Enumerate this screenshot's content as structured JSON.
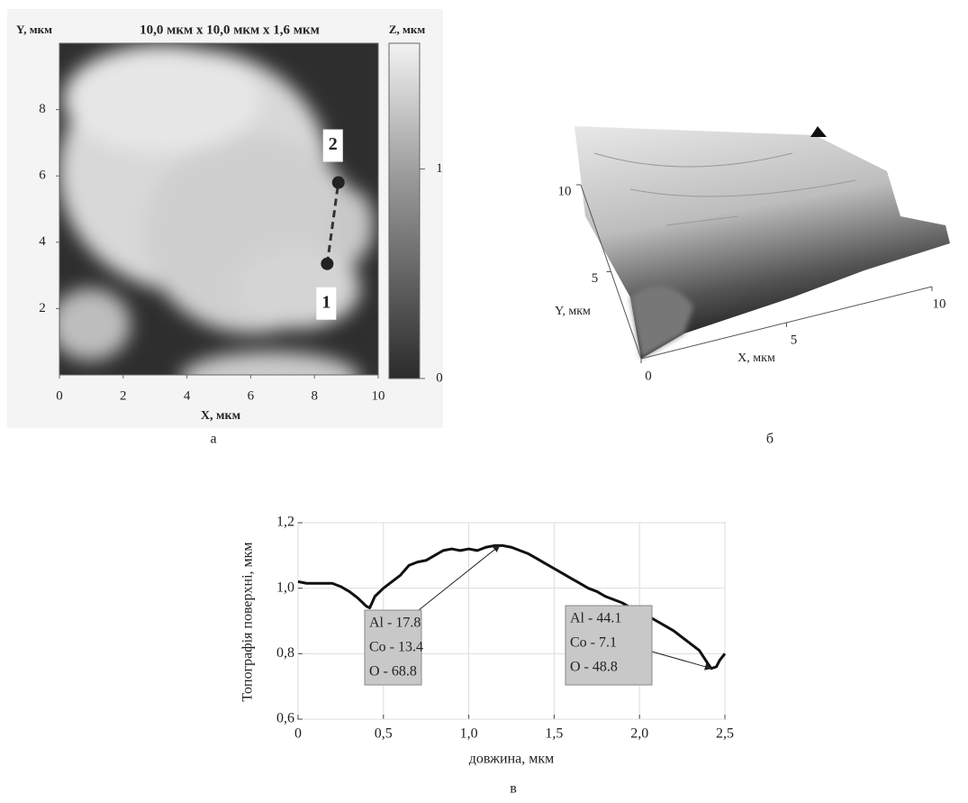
{
  "chart_data": [
    {
      "type": "heatmap",
      "panel_label": "а",
      "title": "10,0 мкм x 10,0 мкм x 1,6 мкм",
      "x_label": "X, мкм",
      "y_label": "Y, мкм",
      "colorbar_label": "Z, мкм",
      "xlim": [
        0,
        10
      ],
      "ylim": [
        0,
        10
      ],
      "xticks": [
        0,
        2,
        4,
        6,
        8,
        10
      ],
      "yticks": [
        2,
        4,
        6,
        8
      ],
      "colorbar_lim": [
        0,
        1.6
      ],
      "colorbar_ticks": [
        0,
        1
      ],
      "points": [
        {
          "label": "1",
          "x": 8.4,
          "y": 3.35
        },
        {
          "label": "2",
          "x": 8.75,
          "y": 5.8
        }
      ]
    },
    {
      "type": "surface",
      "panel_label": "б",
      "x_label": "X, мкм",
      "y_label": "Y, мкм",
      "xlim": [
        0,
        10
      ],
      "ylim": [
        0,
        10
      ],
      "xticks": [
        0,
        5,
        10
      ],
      "yticks": [
        5,
        10
      ]
    },
    {
      "type": "line",
      "panel_label": "в",
      "x_label": "довжина, мкм",
      "y_label": "Топографія поверхні, мкм",
      "xlim": [
        0,
        2.5
      ],
      "ylim": [
        0.6,
        1.2
      ],
      "xticks": [
        0,
        {
          "value": 0.5,
          "label": "0,5"
        },
        {
          "value": 1.0,
          "label": "1,0"
        },
        {
          "value": 1.5,
          "label": "1,5"
        },
        {
          "value": 2.0,
          "label": "2,0"
        },
        {
          "value": 2.5,
          "label": "2,5"
        }
      ],
      "yticks": [
        {
          "value": 0.6,
          "label": "0,6"
        },
        {
          "value": 0.8,
          "label": "0,8"
        },
        {
          "value": 1.0,
          "label": "1,0"
        },
        {
          "value": 1.2,
          "label": "1,2"
        }
      ],
      "grid": true,
      "x": [
        0,
        0.05,
        0.1,
        0.15,
        0.2,
        0.25,
        0.3,
        0.35,
        0.4,
        0.42,
        0.45,
        0.5,
        0.55,
        0.6,
        0.65,
        0.7,
        0.75,
        0.8,
        0.85,
        0.9,
        0.95,
        1.0,
        1.05,
        1.1,
        1.15,
        1.2,
        1.25,
        1.3,
        1.35,
        1.4,
        1.45,
        1.5,
        1.55,
        1.6,
        1.65,
        1.7,
        1.75,
        1.8,
        1.85,
        1.9,
        1.95,
        2.0,
        2.05,
        2.1,
        2.15,
        2.2,
        2.25,
        2.3,
        2.35,
        2.4,
        2.42,
        2.45,
        2.47,
        2.5
      ],
      "series": [
        {
          "color": "#111111",
          "values": [
            1.02,
            1.015,
            1.015,
            1.015,
            1.015,
            1.005,
            0.99,
            0.97,
            0.945,
            0.94,
            0.975,
            1.0,
            1.02,
            1.04,
            1.07,
            1.08,
            1.085,
            1.1,
            1.115,
            1.12,
            1.115,
            1.12,
            1.115,
            1.125,
            1.13,
            1.13,
            1.125,
            1.115,
            1.105,
            1.09,
            1.075,
            1.06,
            1.045,
            1.03,
            1.015,
            1.0,
            0.99,
            0.975,
            0.965,
            0.955,
            0.94,
            0.93,
            0.915,
            0.9,
            0.885,
            0.87,
            0.85,
            0.83,
            0.81,
            0.77,
            0.755,
            0.76,
            0.78,
            0.8
          ]
        }
      ],
      "annotations": [
        {
          "text": [
            "Al - 17.8",
            "Co - 13.4",
            "O - 68.8"
          ],
          "x": 1.18,
          "y": 1.13
        },
        {
          "text": [
            "Al - 44.1",
            "Co - 7.1",
            "O - 48.8"
          ],
          "x": 2.42,
          "y": 0.755
        }
      ]
    }
  ]
}
